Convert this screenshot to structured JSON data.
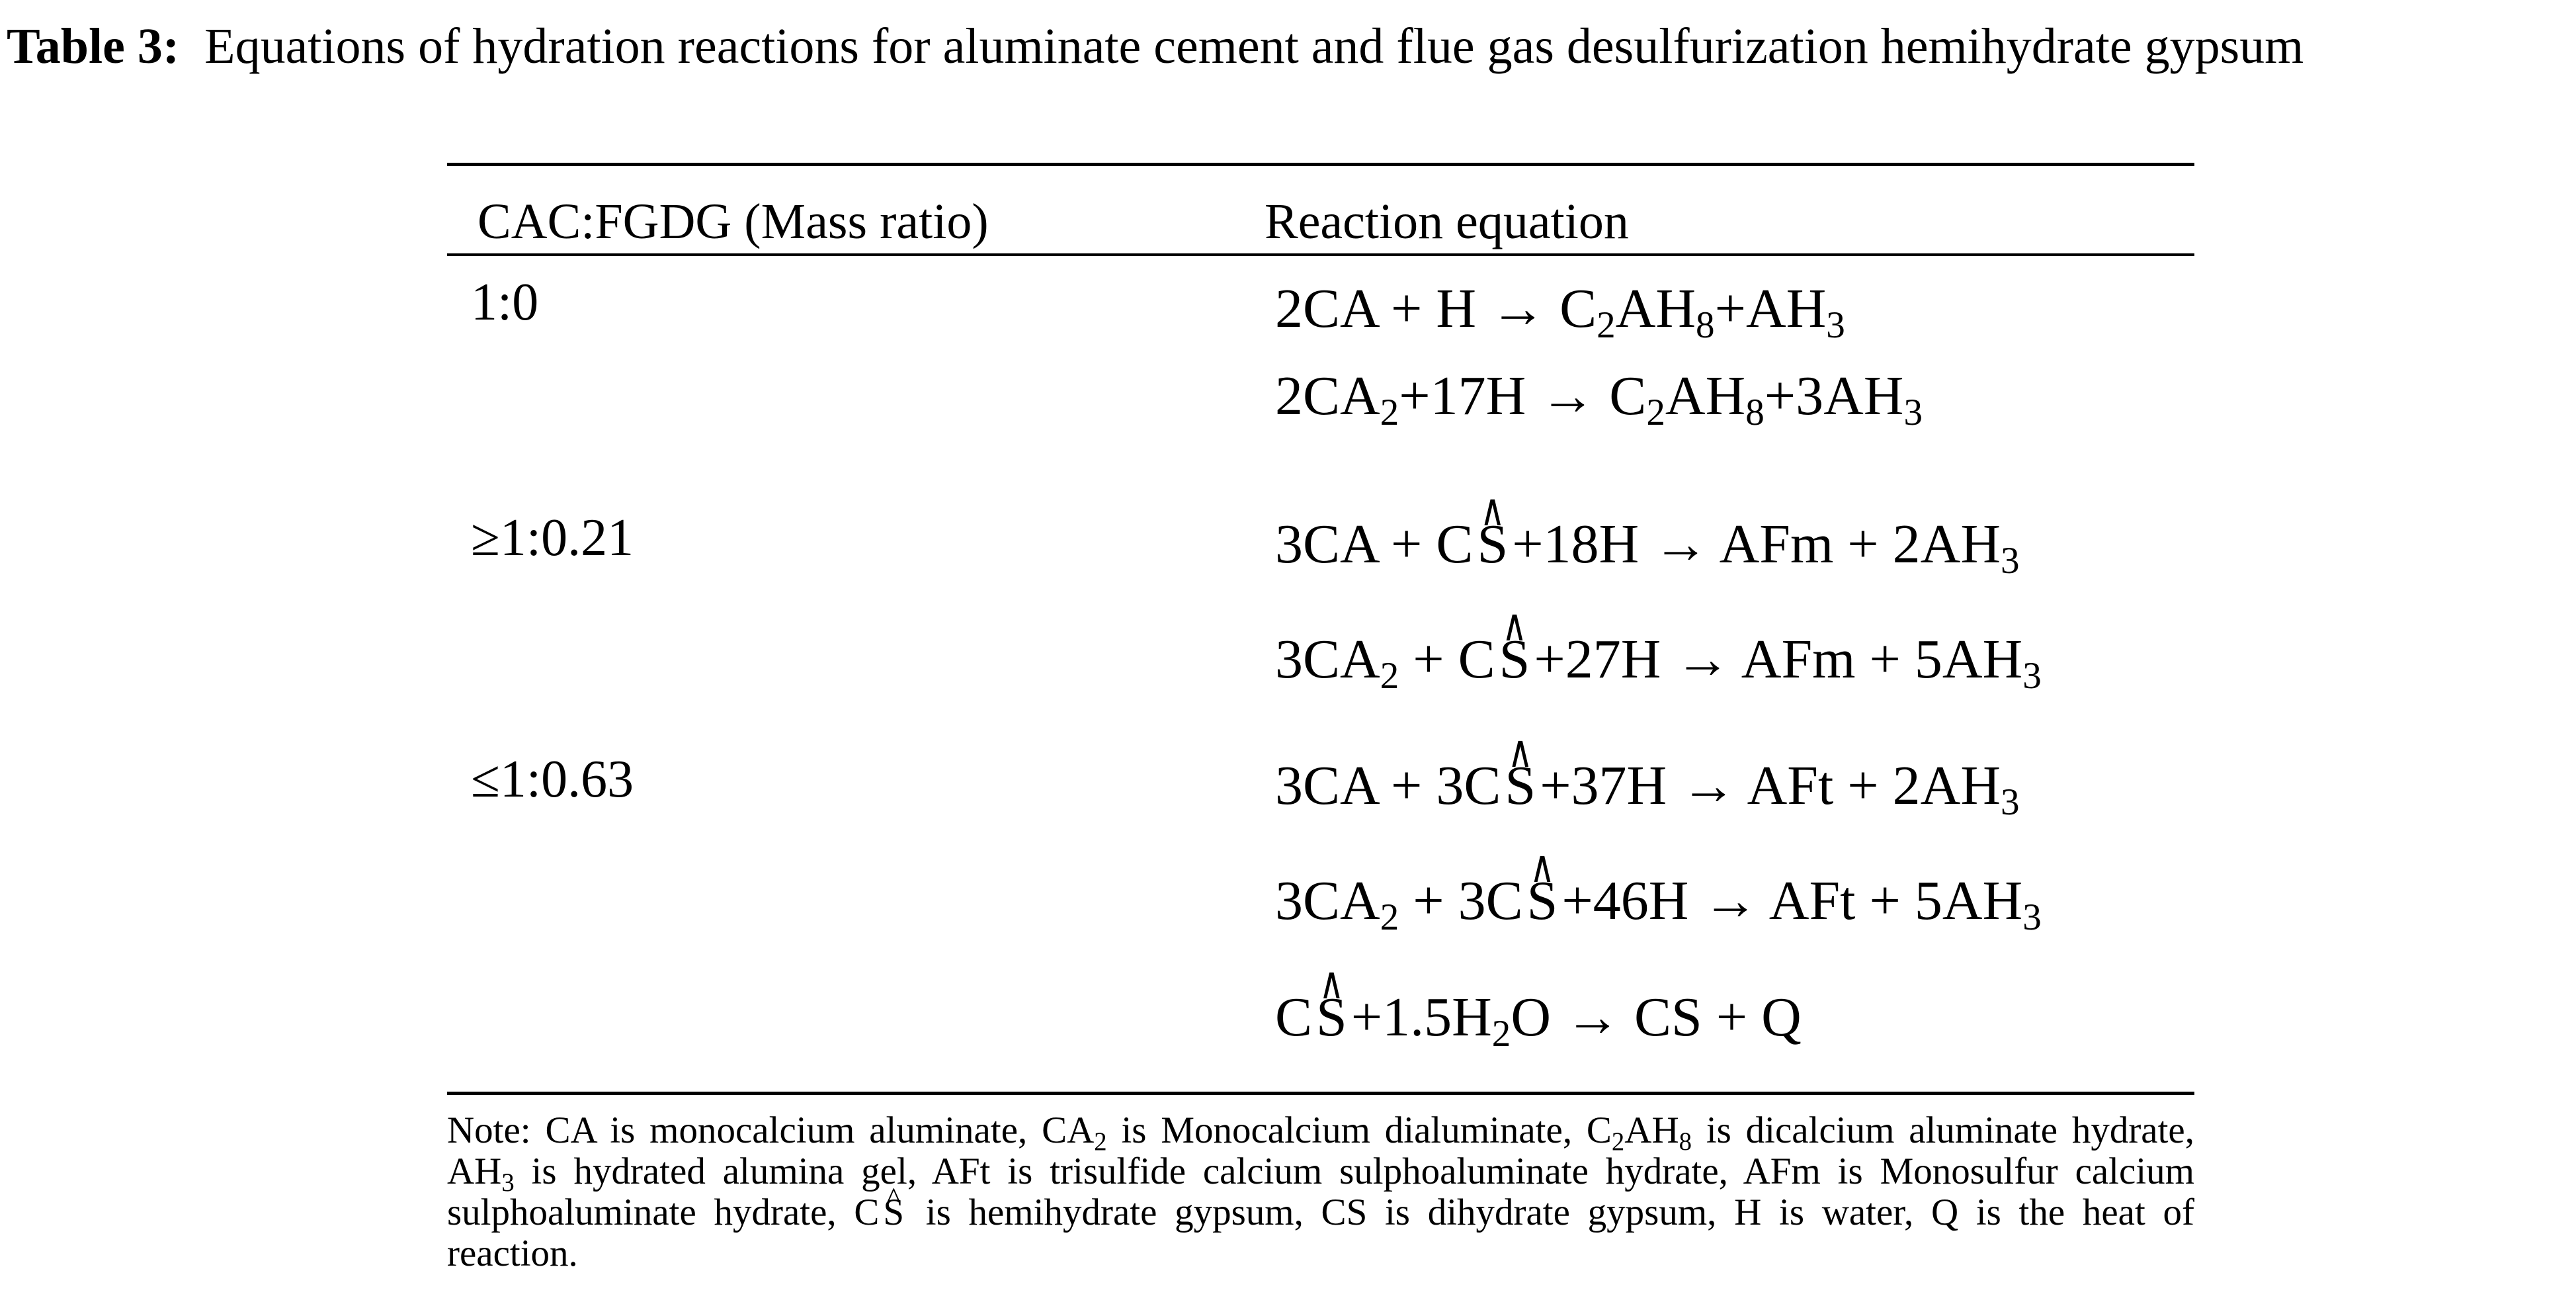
{
  "title": {
    "label": "Table 3:",
    "text": "Equations of hydration reactions for aluminate cement and flue gas desulfurization hemihydrate gypsum"
  },
  "table": {
    "headers": [
      "CAC:FGDG (Mass ratio)",
      "Reaction equation"
    ],
    "rows": [
      {
        "ratio": "1:0",
        "equations": [
          [
            {
              "t": "2CA + H → C"
            },
            {
              "sub": "2"
            },
            {
              "t": "AH"
            },
            {
              "sub": "8"
            },
            {
              "t": "+AH"
            },
            {
              "sub": "3"
            }
          ],
          [
            {
              "t": "2CA"
            },
            {
              "sub": "2"
            },
            {
              "t": "+17H → C"
            },
            {
              "sub": "2"
            },
            {
              "t": "AH"
            },
            {
              "sub": "8"
            },
            {
              "t": "+3AH"
            },
            {
              "sub": "3"
            }
          ]
        ]
      },
      {
        "ratio": "≥1:0.21",
        "equations": [
          [
            {
              "t": "3CA + C"
            },
            {
              "hat": "S"
            },
            {
              "t": "+18H → AFm + 2AH"
            },
            {
              "sub": "3"
            }
          ],
          [
            {
              "t": "3CA"
            },
            {
              "sub": "2"
            },
            {
              "t": " + C"
            },
            {
              "hat": "S"
            },
            {
              "t": "+27H → AFm + 5AH"
            },
            {
              "sub": "3"
            }
          ]
        ]
      },
      {
        "ratio": "≤1:0.63",
        "equations": [
          [
            {
              "t": "3CA + 3C"
            },
            {
              "hat": "S"
            },
            {
              "t": "+37H → AFt + 2AH"
            },
            {
              "sub": "3"
            }
          ],
          [
            {
              "t": "3CA"
            },
            {
              "sub": "2"
            },
            {
              "t": " + 3C"
            },
            {
              "hat": "S"
            },
            {
              "t": "+46H → AFt + 5AH"
            },
            {
              "sub": "3"
            }
          ],
          [
            {
              "t": "C"
            },
            {
              "hat": "S"
            },
            {
              "t": "+1.5H"
            },
            {
              "sub": "2"
            },
            {
              "t": "O → CS + Q"
            }
          ]
        ]
      }
    ]
  },
  "note": [
    {
      "t": "Note: CA is monocalcium aluminate, CA"
    },
    {
      "sub": "2"
    },
    {
      "t": " is Monocalcium dialuminate, C"
    },
    {
      "sub": "2"
    },
    {
      "t": "AH"
    },
    {
      "sub": "8"
    },
    {
      "t": " is dicalcium aluminate hydrate, AH"
    },
    {
      "sub": "3"
    },
    {
      "t": " is hydrated alumina gel, AFt is trisulfide calcium sulphoaluminate hydrate, AFm is Monosulfur calcium sulphoaluminate hydrate, C"
    },
    {
      "hat": "S"
    },
    {
      "t": " is hemihydrate gypsum, CS is dihydrate gypsum, H is water, Q is the heat of reaction."
    }
  ]
}
